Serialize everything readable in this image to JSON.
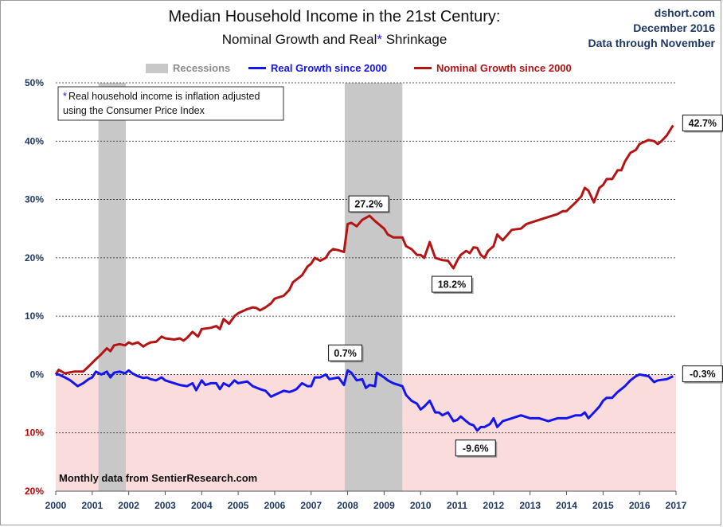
{
  "header": {
    "title": "Median Household Income in the 21st Century:",
    "subtitle_pre": "Nominal  Growth and Real",
    "subtitle_ast": "*",
    "subtitle_post": " Shrinkage",
    "source_lines": [
      "dshort.com",
      "December 2016",
      "Data through November"
    ]
  },
  "legend": {
    "recessions": "Recessions",
    "real": "Real Growth since 2000",
    "nominal": "Nominal Growth since 2000"
  },
  "note": {
    "star": "*",
    "line1": "Real household  income is inflation adjusted",
    "line2": "using  the Consumer Price Index"
  },
  "footer_note": "Monthly data  from SentierResearch.com",
  "colors": {
    "real": "#1515ee",
    "nominal": "#b51414",
    "recession": "#c8c8c8",
    "negative_band": "#fbdcdc",
    "text_dark": "#1f3864"
  },
  "chart_data": {
    "type": "line",
    "xlim": [
      2000,
      2017
    ],
    "ylim": [
      -20,
      50
    ],
    "grid": "horizontal dashed",
    "legend_position": "top",
    "x_ticks": [
      "2000",
      "2001",
      "2002",
      "2003",
      "2004",
      "2005",
      "2006",
      "2007",
      "2008",
      "2009",
      "2010",
      "2011",
      "2012",
      "2013",
      "2014",
      "2015",
      "2016",
      "2017"
    ],
    "y_ticks": [
      {
        "v": 50,
        "label": "50%"
      },
      {
        "v": 40,
        "label": "40%"
      },
      {
        "v": 30,
        "label": "30%"
      },
      {
        "v": 20,
        "label": "20%"
      },
      {
        "v": 10,
        "label": "10%"
      },
      {
        "v": 0,
        "label": "0%"
      },
      {
        "v": -10,
        "label": "10%"
      },
      {
        "v": -20,
        "label": "20%"
      }
    ],
    "recessions": [
      [
        2001.17,
        2001.92
      ],
      [
        2007.92,
        2009.5
      ]
    ],
    "series": [
      {
        "name": "Nominal Growth since 2000",
        "points": [
          [
            2000,
            0
          ],
          [
            2000.08,
            0.8
          ],
          [
            2000.25,
            0.2
          ],
          [
            2000.5,
            0.5
          ],
          [
            2000.75,
            0.5
          ],
          [
            2000.92,
            1.5
          ],
          [
            2001.08,
            2.5
          ],
          [
            2001.25,
            3.5
          ],
          [
            2001.4,
            4.5
          ],
          [
            2001.5,
            4.0
          ],
          [
            2001.6,
            5.0
          ],
          [
            2001.75,
            5.2
          ],
          [
            2001.9,
            5.0
          ],
          [
            2002.0,
            5.5
          ],
          [
            2002.1,
            5.2
          ],
          [
            2002.25,
            5.5
          ],
          [
            2002.4,
            4.8
          ],
          [
            2002.5,
            5.2
          ],
          [
            2002.6,
            5.5
          ],
          [
            2002.75,
            5.6
          ],
          [
            2002.9,
            6.5
          ],
          [
            2003.0,
            6.2
          ],
          [
            2003.25,
            6.0
          ],
          [
            2003.4,
            6.2
          ],
          [
            2003.5,
            5.8
          ],
          [
            2003.6,
            6.3
          ],
          [
            2003.75,
            7.3
          ],
          [
            2003.9,
            6.5
          ],
          [
            2004.0,
            7.8
          ],
          [
            2004.25,
            8.0
          ],
          [
            2004.4,
            8.3
          ],
          [
            2004.5,
            7.8
          ],
          [
            2004.6,
            9.5
          ],
          [
            2004.75,
            8.7
          ],
          [
            2004.9,
            10.0
          ],
          [
            2005.0,
            10.5
          ],
          [
            2005.25,
            11.2
          ],
          [
            2005.4,
            11.5
          ],
          [
            2005.5,
            11.4
          ],
          [
            2005.6,
            11.0
          ],
          [
            2005.75,
            11.5
          ],
          [
            2005.9,
            12.2
          ],
          [
            2006.0,
            13.0
          ],
          [
            2006.25,
            13.5
          ],
          [
            2006.4,
            14.5
          ],
          [
            2006.5,
            15.8
          ],
          [
            2006.75,
            17.0
          ],
          [
            2006.9,
            18.5
          ],
          [
            2007.0,
            19.0
          ],
          [
            2007.1,
            20.0
          ],
          [
            2007.25,
            19.5
          ],
          [
            2007.4,
            20.0
          ],
          [
            2007.5,
            21.0
          ],
          [
            2007.6,
            21.5
          ],
          [
            2007.75,
            21.3
          ],
          [
            2007.9,
            21.0
          ],
          [
            2008.0,
            25.8
          ],
          [
            2008.1,
            26.0
          ],
          [
            2008.25,
            25.4
          ],
          [
            2008.4,
            26.5
          ],
          [
            2008.6,
            27.2
          ],
          [
            2008.75,
            26.3
          ],
          [
            2009.0,
            25.0
          ],
          [
            2009.1,
            24.0
          ],
          [
            2009.25,
            23.5
          ],
          [
            2009.5,
            23.5
          ],
          [
            2009.6,
            22.0
          ],
          [
            2009.75,
            21.5
          ],
          [
            2009.9,
            20.5
          ],
          [
            2010.0,
            20.5
          ],
          [
            2010.1,
            20.0
          ],
          [
            2010.25,
            22.7
          ],
          [
            2010.4,
            20.0
          ],
          [
            2010.6,
            19.6
          ],
          [
            2010.75,
            19.5
          ],
          [
            2010.9,
            18.2
          ],
          [
            2011.0,
            19.5
          ],
          [
            2011.1,
            20.5
          ],
          [
            2011.25,
            21.2
          ],
          [
            2011.35,
            20.8
          ],
          [
            2011.45,
            21.8
          ],
          [
            2011.55,
            21.7
          ],
          [
            2011.65,
            20.5
          ],
          [
            2011.75,
            20.0
          ],
          [
            2011.85,
            21.2
          ],
          [
            2012.0,
            22.0
          ],
          [
            2012.1,
            24.0
          ],
          [
            2012.25,
            23.0
          ],
          [
            2012.5,
            24.8
          ],
          [
            2012.75,
            25.0
          ],
          [
            2012.9,
            25.8
          ],
          [
            2013.0,
            26.0
          ],
          [
            2013.25,
            26.5
          ],
          [
            2013.5,
            27.0
          ],
          [
            2013.75,
            27.5
          ],
          [
            2013.9,
            28.0
          ],
          [
            2014.0,
            28.0
          ],
          [
            2014.25,
            29.5
          ],
          [
            2014.4,
            30.5
          ],
          [
            2014.5,
            32.0
          ],
          [
            2014.6,
            31.5
          ],
          [
            2014.75,
            29.5
          ],
          [
            2014.9,
            32.0
          ],
          [
            2015.0,
            32.5
          ],
          [
            2015.1,
            33.5
          ],
          [
            2015.25,
            33.5
          ],
          [
            2015.4,
            35.0
          ],
          [
            2015.5,
            35.0
          ],
          [
            2015.6,
            36.5
          ],
          [
            2015.75,
            38.0
          ],
          [
            2015.9,
            38.5
          ],
          [
            2016.0,
            39.5
          ],
          [
            2016.25,
            40.2
          ],
          [
            2016.4,
            40.0
          ],
          [
            2016.5,
            39.5
          ],
          [
            2016.6,
            40.0
          ],
          [
            2016.75,
            41.0
          ],
          [
            2016.92,
            42.7
          ]
        ]
      },
      {
        "name": "Real Growth since 2000",
        "points": [
          [
            2000,
            0
          ],
          [
            2000.08,
            0
          ],
          [
            2000.25,
            -0.5
          ],
          [
            2000.4,
            -1.0
          ],
          [
            2000.6,
            -2.0
          ],
          [
            2000.75,
            -1.5
          ],
          [
            2000.9,
            -0.8
          ],
          [
            2001.0,
            -0.5
          ],
          [
            2001.1,
            0.5
          ],
          [
            2001.25,
            0
          ],
          [
            2001.4,
            0.5
          ],
          [
            2001.5,
            -0.5
          ],
          [
            2001.6,
            0.3
          ],
          [
            2001.75,
            0.5
          ],
          [
            2001.9,
            0.2
          ],
          [
            2002.0,
            0.7
          ],
          [
            2002.1,
            0.2
          ],
          [
            2002.25,
            -0.3
          ],
          [
            2002.4,
            -0.6
          ],
          [
            2002.5,
            -0.5
          ],
          [
            2002.6,
            -0.8
          ],
          [
            2002.75,
            -1.0
          ],
          [
            2002.9,
            -0.5
          ],
          [
            2003.0,
            -1.0
          ],
          [
            2003.25,
            -1.5
          ],
          [
            2003.4,
            -1.8
          ],
          [
            2003.6,
            -2.0
          ],
          [
            2003.75,
            -1.5
          ],
          [
            2003.85,
            -2.7
          ],
          [
            2004.0,
            -1.0
          ],
          [
            2004.1,
            -1.8
          ],
          [
            2004.25,
            -1.5
          ],
          [
            2004.4,
            -1.5
          ],
          [
            2004.5,
            -2.5
          ],
          [
            2004.6,
            -1.5
          ],
          [
            2004.75,
            -2.0
          ],
          [
            2004.9,
            -1.0
          ],
          [
            2005.0,
            -1.5
          ],
          [
            2005.25,
            -1.2
          ],
          [
            2005.4,
            -2.0
          ],
          [
            2005.6,
            -2.5
          ],
          [
            2005.75,
            -2.8
          ],
          [
            2005.9,
            -3.8
          ],
          [
            2006.0,
            -3.5
          ],
          [
            2006.25,
            -2.8
          ],
          [
            2006.4,
            -3.0
          ],
          [
            2006.5,
            -2.8
          ],
          [
            2006.6,
            -2.5
          ],
          [
            2006.75,
            -1.5
          ],
          [
            2006.9,
            -2.0
          ],
          [
            2007.0,
            -2.0
          ],
          [
            2007.1,
            -0.5
          ],
          [
            2007.25,
            -0.5
          ],
          [
            2007.4,
            0.0
          ],
          [
            2007.5,
            -0.8
          ],
          [
            2007.75,
            -0.5
          ],
          [
            2007.9,
            -1.8
          ],
          [
            2008.0,
            0.7
          ],
          [
            2008.1,
            0.3
          ],
          [
            2008.25,
            -1.0
          ],
          [
            2008.4,
            -0.8
          ],
          [
            2008.5,
            -2.3
          ],
          [
            2008.6,
            -1.8
          ],
          [
            2008.75,
            -2.0
          ],
          [
            2008.8,
            0.3
          ],
          [
            2009.0,
            -0.5
          ],
          [
            2009.1,
            -1.0
          ],
          [
            2009.25,
            -1.5
          ],
          [
            2009.5,
            -2.0
          ],
          [
            2009.6,
            -3.5
          ],
          [
            2009.75,
            -4.5
          ],
          [
            2009.9,
            -5.0
          ],
          [
            2010.0,
            -6.0
          ],
          [
            2010.1,
            -5.5
          ],
          [
            2010.25,
            -4.5
          ],
          [
            2010.4,
            -6.5
          ],
          [
            2010.5,
            -6.5
          ],
          [
            2010.6,
            -7.0
          ],
          [
            2010.75,
            -6.5
          ],
          [
            2010.9,
            -8.0
          ],
          [
            2011.0,
            -7.8
          ],
          [
            2011.1,
            -7.2
          ],
          [
            2011.25,
            -8.0
          ],
          [
            2011.35,
            -8.5
          ],
          [
            2011.45,
            -8.7
          ],
          [
            2011.55,
            -9.6
          ],
          [
            2011.65,
            -9.0
          ],
          [
            2011.75,
            -9.0
          ],
          [
            2011.9,
            -8.5
          ],
          [
            2012.0,
            -7.5
          ],
          [
            2012.1,
            -9.0
          ],
          [
            2012.25,
            -8.0
          ],
          [
            2012.5,
            -7.5
          ],
          [
            2012.75,
            -7.0
          ],
          [
            2013.0,
            -7.5
          ],
          [
            2013.25,
            -7.5
          ],
          [
            2013.5,
            -8.0
          ],
          [
            2013.75,
            -7.5
          ],
          [
            2014.0,
            -7.5
          ],
          [
            2014.25,
            -7.0
          ],
          [
            2014.4,
            -7.0
          ],
          [
            2014.5,
            -6.5
          ],
          [
            2014.6,
            -7.5
          ],
          [
            2014.75,
            -6.5
          ],
          [
            2014.9,
            -5.5
          ],
          [
            2015.0,
            -4.5
          ],
          [
            2015.1,
            -4.0
          ],
          [
            2015.25,
            -4.0
          ],
          [
            2015.4,
            -3.0
          ],
          [
            2015.5,
            -2.5
          ],
          [
            2015.6,
            -2.0
          ],
          [
            2015.75,
            -1.0
          ],
          [
            2015.9,
            -0.3
          ],
          [
            2016.0,
            0.0
          ],
          [
            2016.25,
            -0.3
          ],
          [
            2016.4,
            -1.3
          ],
          [
            2016.5,
            -1.0
          ],
          [
            2016.75,
            -0.8
          ],
          [
            2016.92,
            -0.3
          ]
        ]
      }
    ],
    "callouts": [
      {
        "label": "42.7%",
        "series": 0,
        "x": 2016.92,
        "y": 42.7
      },
      {
        "label": "27.2%",
        "series": 0,
        "x": 2008.6,
        "y": 27.2
      },
      {
        "label": "18.2%",
        "series": 0,
        "x": 2010.9,
        "y": 18.2
      },
      {
        "label": "0.7%",
        "series": 1,
        "x": 2008.0,
        "y": 0.7
      },
      {
        "label": "-9.6%",
        "series": 1,
        "x": 2011.55,
        "y": -9.6
      },
      {
        "label": "-0.3%",
        "series": 1,
        "x": 2016.92,
        "y": -0.3
      }
    ]
  }
}
